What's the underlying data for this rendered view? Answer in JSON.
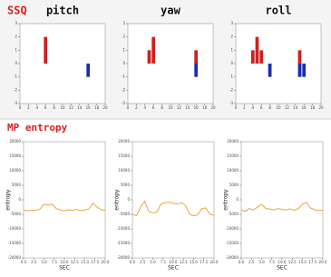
{
  "headers": {
    "ssq": "SSQ",
    "mp": "MP entropy"
  },
  "chart_data": [
    {
      "type": "bar",
      "title": "pitch",
      "xlim": [
        0,
        20
      ],
      "xticks": [
        0,
        2,
        4,
        6,
        8,
        10,
        12,
        14,
        16,
        18,
        20
      ],
      "ylim": [
        -3,
        3
      ],
      "yticks": [
        -3,
        -2,
        -1,
        0,
        1,
        2,
        3
      ],
      "series": [
        {
          "name": "red",
          "color": "#cc2222",
          "x": [
            6
          ],
          "values": [
            2
          ]
        },
        {
          "name": "blue",
          "color": "#1a2fb0",
          "x": [
            16
          ],
          "values": [
            -1
          ]
        }
      ]
    },
    {
      "type": "bar",
      "title": "yaw",
      "xlim": [
        0,
        20
      ],
      "xticks": [
        0,
        2,
        4,
        6,
        8,
        10,
        12,
        14,
        16,
        18,
        20
      ],
      "ylim": [
        -3,
        3
      ],
      "yticks": [
        -3,
        -2,
        -1,
        0,
        1,
        2,
        3
      ],
      "series": [
        {
          "name": "red",
          "color": "#cc2222",
          "x": [
            5,
            6,
            16
          ],
          "values": [
            1,
            2,
            1
          ]
        },
        {
          "name": "blue",
          "color": "#1a2fb0",
          "x": [
            16
          ],
          "values": [
            -1
          ]
        }
      ]
    },
    {
      "type": "bar",
      "title": "roll",
      "xlim": [
        0,
        20
      ],
      "xticks": [
        0,
        2,
        4,
        6,
        8,
        10,
        12,
        14,
        16,
        18,
        20
      ],
      "ylim": [
        -3,
        3
      ],
      "yticks": [
        -3,
        -2,
        -1,
        0,
        1,
        2,
        3
      ],
      "series": [
        {
          "name": "red",
          "color": "#cc2222",
          "x": [
            4,
            5,
            6,
            15
          ],
          "values": [
            1,
            2,
            1,
            1
          ]
        },
        {
          "name": "blue",
          "color": "#1a2fb0",
          "x": [
            8,
            15,
            16
          ],
          "values": [
            -1,
            -1,
            -1
          ]
        }
      ]
    },
    {
      "type": "line",
      "xlabel": "SEC",
      "ylabel": "entropy",
      "xlim": [
        0,
        20
      ],
      "ylim": [
        -20000,
        20000
      ],
      "xticks": [
        {
          "value": 0,
          "label": "0.0"
        },
        {
          "value": 2.5,
          "label": "2.5"
        },
        {
          "value": 5,
          "label": "5.0"
        },
        {
          "value": 7.5,
          "label": "7.5"
        },
        {
          "value": 10,
          "label": "10.0"
        },
        {
          "value": 12.5,
          "label": "12.5"
        },
        {
          "value": 15,
          "label": "15.0"
        },
        {
          "value": 17.5,
          "label": "17.5"
        },
        {
          "value": 20,
          "label": "20.0"
        }
      ],
      "yticks": [
        -20000,
        -15000,
        -10000,
        -5000,
        0,
        5000,
        10000,
        15000,
        20000
      ],
      "x": [
        0,
        1,
        2,
        3,
        4,
        5,
        6,
        7,
        8,
        9,
        10,
        11,
        12,
        13,
        14,
        15,
        16,
        17,
        18,
        19,
        20
      ],
      "series": [
        {
          "name": "entropy",
          "color": "#e0a030",
          "values": [
            -3500,
            -3800,
            -3600,
            -3700,
            -3200,
            -1500,
            -1800,
            -1500,
            -3000,
            -3500,
            -3800,
            -3400,
            -3600,
            -3300,
            -3700,
            -3500,
            -3200,
            -1200,
            -2500,
            -3400,
            -3600
          ]
        }
      ]
    },
    {
      "type": "line",
      "xlabel": "SEC",
      "ylabel": "entropy",
      "xlim": [
        0,
        20
      ],
      "ylim": [
        -20000,
        20000
      ],
      "xticks": [
        {
          "value": 0,
          "label": "0.0"
        },
        {
          "value": 2.5,
          "label": "2.5"
        },
        {
          "value": 5,
          "label": "5.0"
        },
        {
          "value": 7.5,
          "label": "7.5"
        },
        {
          "value": 10,
          "label": "10.0"
        },
        {
          "value": 12.5,
          "label": "12.5"
        },
        {
          "value": 15,
          "label": "15.0"
        },
        {
          "value": 17.5,
          "label": "17.5"
        },
        {
          "value": 20,
          "label": "20.0"
        }
      ],
      "yticks": [
        -20000,
        -15000,
        -10000,
        -5000,
        0,
        5000,
        10000,
        15000,
        20000
      ],
      "x": [
        0,
        1,
        2,
        3,
        4,
        5,
        6,
        7,
        8,
        9,
        10,
        11,
        12,
        13,
        14,
        15,
        16,
        17,
        18,
        19,
        20
      ],
      "series": [
        {
          "name": "entropy",
          "color": "#e0a030",
          "values": [
            -5000,
            -5500,
            -2500,
            -500,
            -4000,
            -4500,
            -4200,
            -1500,
            -1000,
            -800,
            -1200,
            -1500,
            -1000,
            -1800,
            -5000,
            -5500,
            -5200,
            -3000,
            -2800,
            -5000,
            -5300
          ]
        }
      ]
    },
    {
      "type": "line",
      "xlabel": "SEC",
      "ylabel": "entropy",
      "xlim": [
        0,
        20
      ],
      "ylim": [
        -20000,
        20000
      ],
      "xticks": [
        {
          "value": 0,
          "label": "0.0"
        },
        {
          "value": 2.5,
          "label": "2.5"
        },
        {
          "value": 5,
          "label": "5.0"
        },
        {
          "value": 7.5,
          "label": "7.5"
        },
        {
          "value": 10,
          "label": "10.0"
        },
        {
          "value": 12.5,
          "label": "12.5"
        },
        {
          "value": 15,
          "label": "15.0"
        },
        {
          "value": 17.5,
          "label": "17.5"
        },
        {
          "value": 20,
          "label": "20.0"
        }
      ],
      "yticks": [
        -20000,
        -15000,
        -10000,
        -5000,
        0,
        5000,
        10000,
        15000,
        20000
      ],
      "x": [
        0,
        1,
        2,
        3,
        4,
        5,
        6,
        7,
        8,
        9,
        10,
        11,
        12,
        13,
        14,
        15,
        16,
        17,
        18,
        19,
        20
      ],
      "series": [
        {
          "name": "entropy",
          "color": "#e0a030",
          "values": [
            -3500,
            -4000,
            -3000,
            -3500,
            -2500,
            -1500,
            -3000,
            -3200,
            -3500,
            -3000,
            -3300,
            -3500,
            -3100,
            -3600,
            -3000,
            -1500,
            -900,
            -2800,
            -3500,
            -3700,
            -3600
          ]
        }
      ]
    }
  ]
}
